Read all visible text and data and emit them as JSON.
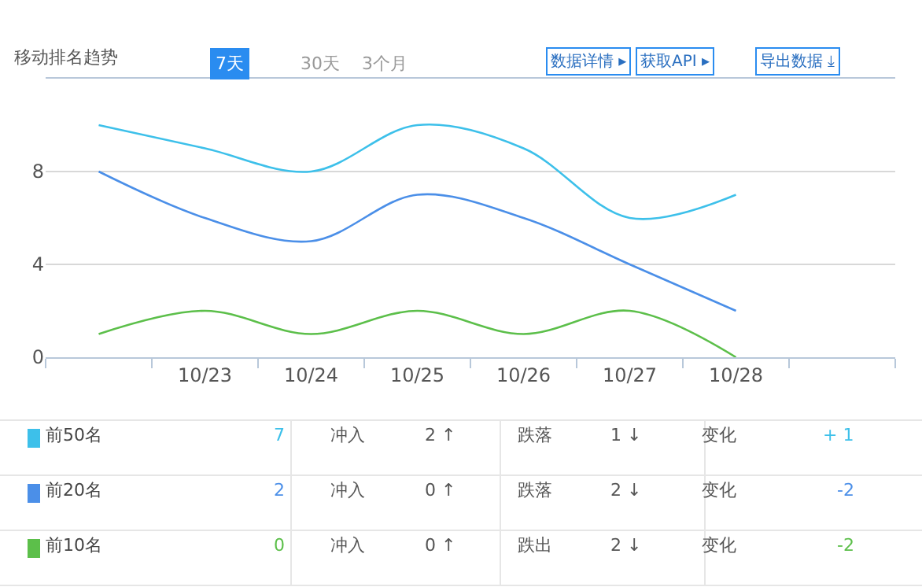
{
  "chart_data": {
    "type": "line",
    "title": "移动排名趋势",
    "categories": [
      null,
      "10/23",
      "10/24",
      "10/25",
      "10/26",
      "10/27",
      "10/28",
      null
    ],
    "series": [
      {
        "name": "前50名",
        "color": "#3dc0ea",
        "values": [
          10,
          9,
          8,
          10,
          9,
          6,
          7,
          null
        ]
      },
      {
        "name": "前20名",
        "color": "#4b8fe8",
        "values": [
          8,
          6,
          5,
          7,
          6,
          4,
          2,
          null
        ]
      },
      {
        "name": "前10名",
        "color": "#5cbf4a",
        "values": [
          1,
          2,
          1,
          2,
          1,
          2,
          0,
          null
        ]
      }
    ],
    "ylim": [
      0,
      12
    ],
    "yticks": [
      0,
      4,
      8
    ],
    "grid": "y",
    "legend": "bottom",
    "marker": "none",
    "line_style": "solid",
    "annotations": [
      "7天",
      "30天",
      "3个月",
      "数据详情 ▸",
      "获取API ▸",
      "导出数据 ⤓",
      "7",
      "冲入",
      "2 ↑",
      "跌落",
      "1 ↓",
      "变化",
      "+ 1",
      "2",
      "冲入",
      "0 ↑",
      "跌落",
      "2 ↓",
      "变化",
      "-2",
      "0",
      "冲入",
      "0 ↑",
      "跌出",
      "2 ↓",
      "变化",
      "-2"
    ]
  }
}
